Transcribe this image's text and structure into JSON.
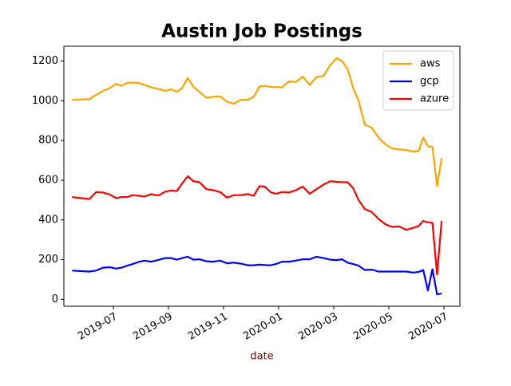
{
  "chart_data": {
    "type": "line",
    "title": "Austin Job Postings",
    "x_label": "date",
    "x": [
      "2019-05",
      "2019-06",
      "2019-06",
      "2019-06",
      "2019-06",
      "2019-07",
      "2019-07",
      "2019-07",
      "2019-07",
      "2019-07",
      "2019-08",
      "2019-08",
      "2019-08",
      "2019-08",
      "2019-09",
      "2019-09",
      "2019-09",
      "2019-09",
      "2019-09",
      "2019-10",
      "2019-10",
      "2019-10",
      "2019-10",
      "2019-11",
      "2019-11",
      "2019-11",
      "2019-11",
      "2019-12",
      "2019-12",
      "2019-12",
      "2019-12",
      "2019-12",
      "2020-01",
      "2020-01",
      "2020-01",
      "2020-01",
      "2020-02",
      "2020-02",
      "2020-02",
      "2020-02",
      "2020-03",
      "2020-03",
      "2020-03",
      "2020-03",
      "2020-03",
      "2020-04",
      "2020-04",
      "2020-04",
      "2020-04",
      "2020-05",
      "2020-05",
      "2020-05",
      "2020-05",
      "2020-06",
      "2020-06",
      "2020-06",
      "2020-06",
      "2020-06",
      "2020-06"
    ],
    "series": [
      {
        "name": "aws",
        "color": "#ffa500",
        "values": [
          1005,
          1008,
          1030,
          1050,
          1065,
          1085,
          1075,
          1090,
          1092,
          1090,
          1080,
          1068,
          1060,
          1050,
          1058,
          1045,
          1065,
          1115,
          1070,
          1045,
          1015,
          1020,
          1022,
          995,
          985,
          1005,
          1005,
          1020,
          1072,
          1075,
          1070,
          1068,
          1068,
          1098,
          1095,
          1122,
          1080,
          1120,
          1125,
          1180,
          1215,
          1200,
          1160,
          1065,
          1000,
          880,
          865,
          815,
          780,
          760,
          755,
          752,
          745,
          748,
          815,
          770,
          768,
          570,
          710
        ]
      },
      {
        "name": "gcp",
        "color": "#0000ff",
        "values": [
          145,
          140,
          145,
          160,
          162,
          155,
          160,
          170,
          178,
          188,
          195,
          190,
          198,
          208,
          208,
          200,
          208,
          215,
          200,
          202,
          192,
          190,
          195,
          182,
          185,
          180,
          172,
          172,
          175,
          173,
          172,
          178,
          190,
          190,
          195,
          202,
          202,
          215,
          208,
          200,
          198,
          202,
          185,
          178,
          170,
          148,
          150,
          140,
          140,
          140,
          140,
          140,
          135,
          138,
          148,
          45,
          152,
          25,
          30
        ]
      },
      {
        "name": "azure",
        "color": "#ff0000",
        "values": [
          515,
          505,
          540,
          538,
          528,
          510,
          515,
          515,
          525,
          522,
          518,
          530,
          523,
          542,
          548,
          545,
          585,
          620,
          595,
          590,
          555,
          550,
          540,
          512,
          525,
          525,
          530,
          522,
          570,
          568,
          540,
          532,
          540,
          538,
          550,
          568,
          532,
          555,
          578,
          595,
          592,
          590,
          590,
          560,
          500,
          455,
          440,
          405,
          378,
          365,
          368,
          350,
          360,
          370,
          395,
          388,
          385,
          125,
          395
        ]
      }
    ],
    "xticks": [
      "2019-07",
      "2019-09",
      "2019-11",
      "2020-01",
      "2020-03",
      "2020-05",
      "2020-07"
    ],
    "ylim": [
      -34.5,
      1274.5
    ],
    "yticks": [
      0,
      200,
      400,
      600,
      800,
      1000,
      1200
    ],
    "legend": "upper right"
  }
}
